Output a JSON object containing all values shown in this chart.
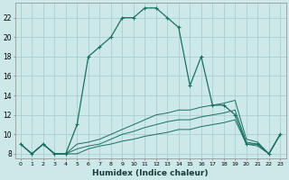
{
  "xlabel": "Humidex (Indice chaleur)",
  "bg_color": "#cce8e8",
  "grid_color": "#aacece",
  "line_color": "#1a7060",
  "xlim": [
    -0.5,
    23.5
  ],
  "ylim": [
    7.5,
    23.5
  ],
  "xticks": [
    0,
    1,
    2,
    3,
    4,
    5,
    6,
    7,
    8,
    9,
    10,
    11,
    12,
    13,
    14,
    15,
    16,
    17,
    18,
    19,
    20,
    21,
    22,
    23
  ],
  "yticks": [
    8,
    10,
    12,
    14,
    16,
    18,
    20,
    22
  ],
  "main_line": [
    9,
    8,
    9,
    8,
    8,
    11,
    18,
    19,
    20,
    22,
    22,
    23,
    23,
    22,
    21,
    15,
    18,
    13,
    13,
    12,
    9,
    9,
    8,
    10
  ],
  "line2": [
    9,
    8,
    9,
    8,
    8,
    9,
    9.2,
    9.5,
    10,
    10.5,
    11,
    11.5,
    12,
    12.2,
    12.5,
    12.5,
    12.8,
    13,
    13.2,
    13.5,
    9.5,
    9.2,
    8,
    10
  ],
  "line3": [
    9,
    8,
    9,
    8,
    8,
    8.5,
    8.8,
    9,
    9.5,
    10,
    10.3,
    10.7,
    11,
    11.3,
    11.5,
    11.5,
    11.8,
    12,
    12.2,
    12.5,
    9.2,
    9,
    8,
    10
  ],
  "line4": [
    9,
    8,
    9,
    8,
    8,
    8,
    8.5,
    8.8,
    9,
    9.3,
    9.5,
    9.8,
    10,
    10.2,
    10.5,
    10.5,
    10.8,
    11,
    11.2,
    11.5,
    9,
    8.8,
    8,
    10
  ]
}
